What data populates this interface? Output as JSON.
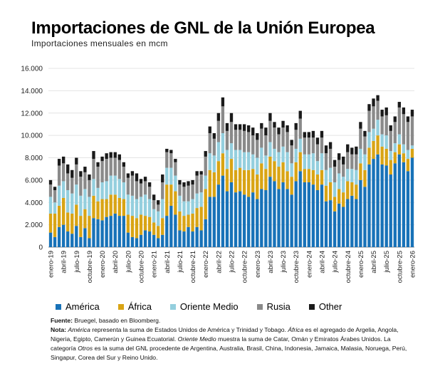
{
  "chart_data": {
    "type": "bar",
    "stacked": true,
    "title": "Importaciones de GNL de la Unión Europea",
    "subtitle": "Importaciones mensuales en mcm",
    "ylim": [
      0,
      16000
    ],
    "yticks": [
      "0",
      "2.000",
      "4.000",
      "6.000",
      "8.000",
      "10.000",
      "12.000",
      "14.000",
      "16.000"
    ],
    "ytick_values": [
      0,
      2000,
      4000,
      6000,
      8000,
      10000,
      12000,
      14000,
      16000
    ],
    "xtick_labels": [
      {
        "index": 0,
        "label": "enero-19"
      },
      {
        "index": 3,
        "label": "abril-19"
      },
      {
        "index": 6,
        "label": "julio-19"
      },
      {
        "index": 9,
        "label": "octubre-19"
      },
      {
        "index": 12,
        "label": "enero-20"
      },
      {
        "index": 15,
        "label": "abril-20"
      },
      {
        "index": 18,
        "label": "julio-20"
      },
      {
        "index": 21,
        "label": "octubre-20"
      },
      {
        "index": 24,
        "label": "enero-21"
      },
      {
        "index": 27,
        "label": "abril-21"
      },
      {
        "index": 30,
        "label": "julio-21"
      },
      {
        "index": 33,
        "label": "octubre-21"
      },
      {
        "index": 36,
        "label": "enero-22"
      },
      {
        "index": 39,
        "label": "abril-22"
      },
      {
        "index": 42,
        "label": "julio-22"
      },
      {
        "index": 45,
        "label": "octubre-22"
      },
      {
        "index": 48,
        "label": "enero-23"
      },
      {
        "index": 51,
        "label": "abril-23"
      },
      {
        "index": 54,
        "label": "julio-23"
      },
      {
        "index": 57,
        "label": "octubre-23"
      },
      {
        "index": 60,
        "label": "enero-24"
      },
      {
        "index": 63,
        "label": "abril-24"
      },
      {
        "index": 66,
        "label": "julio-24"
      },
      {
        "index": 69,
        "label": "octubre-24"
      },
      {
        "index": 72,
        "label": "enero-25"
      },
      {
        "index": 75,
        "label": "abril-25"
      },
      {
        "index": 78,
        "label": "julio-25"
      },
      {
        "index": 81,
        "label": "octubre-25"
      },
      {
        "index": 84,
        "label": "enero-26"
      }
    ],
    "series": [
      {
        "name": "América",
        "color": "#1872b8",
        "values": [
          1300,
          900,
          1800,
          2000,
          1400,
          1200,
          1900,
          900,
          1700,
          800,
          2600,
          2500,
          2400,
          2700,
          2800,
          3000,
          2800,
          2800,
          1300,
          900,
          800,
          1100,
          1500,
          1400,
          1100,
          800,
          1100,
          2800,
          3700,
          2900,
          1500,
          1400,
          1800,
          1400,
          1800,
          1500,
          2500,
          4500,
          4500,
          5600,
          6400,
          5000,
          5800,
          4900,
          5000,
          4700,
          4500,
          4900,
          4300,
          5200,
          5100,
          6300,
          5900,
          5200,
          5800,
          5200,
          4700,
          5900,
          6800,
          5800,
          5800,
          5600,
          5100,
          5600,
          4100,
          4200,
          3200,
          3900,
          3600,
          4300,
          4600,
          4300,
          6000,
          5400,
          7400,
          7900,
          8300,
          7400,
          7300,
          6500,
          7500,
          8300,
          7600,
          6800,
          8000
        ]
      },
      {
        "name": "África",
        "color": "#d9a414",
        "values": [
          1700,
          2100,
          1900,
          2400,
          1700,
          1800,
          1900,
          1900,
          1700,
          2000,
          2000,
          1600,
          1900,
          1600,
          1900,
          1700,
          1600,
          1500,
          1600,
          1900,
          1800,
          1800,
          1300,
          1300,
          1100,
          1100,
          1500,
          2800,
          1900,
          2100,
          1700,
          1400,
          1100,
          1600,
          1700,
          2100,
          2700,
          2400,
          2200,
          2100,
          2000,
          2000,
          2100,
          2000,
          2100,
          2200,
          2400,
          2100,
          2200,
          2300,
          1900,
          1800,
          1800,
          2000,
          1800,
          1600,
          1600,
          1700,
          1700,
          1200,
          1200,
          1300,
          1400,
          1300,
          1400,
          1600,
          1300,
          1300,
          1300,
          1600,
          1200,
          1300,
          1500,
          1500,
          1500,
          1600,
          1700,
          1600,
          1500,
          1300,
          1000,
          900,
          800,
          1100,
          800
        ]
      },
      {
        "name": "Oriente Medio",
        "color": "#94cfde",
        "values": [
          1500,
          1000,
          1800,
          1500,
          2000,
          1800,
          1800,
          1800,
          1800,
          1700,
          1500,
          1200,
          1500,
          1600,
          1700,
          1700,
          1700,
          1500,
          1800,
          1800,
          1700,
          1600,
          1900,
          1600,
          1200,
          1300,
          1700,
          1500,
          1500,
          1400,
          1400,
          1300,
          1200,
          1300,
          1300,
          1300,
          1200,
          1500,
          1500,
          1700,
          1800,
          1700,
          1400,
          1800,
          1600,
          1600,
          1600,
          1300,
          1500,
          1400,
          1200,
          1300,
          1100,
          1300,
          1400,
          1700,
          1200,
          1200,
          1200,
          1300,
          1300,
          1500,
          1200,
          1500,
          1400,
          1300,
          1300,
          1400,
          1400,
          1100,
          1200,
          1300,
          1300,
          1400,
          1400,
          1100,
          1400,
          1100,
          1200,
          800,
          800,
          900,
          800,
          800,
          300
        ]
      },
      {
        "name": "Rusia",
        "color": "#8a8a8a",
        "values": [
          1100,
          1100,
          1800,
          1600,
          1500,
          1400,
          1800,
          1700,
          1500,
          1500,
          1800,
          1900,
          1900,
          2000,
          1600,
          1600,
          1700,
          1400,
          1500,
          1800,
          1600,
          1200,
          1200,
          1100,
          800,
          600,
          1500,
          1400,
          1300,
          1200,
          1000,
          1300,
          1400,
          1300,
          1600,
          1600,
          1700,
          1800,
          1500,
          1900,
          2400,
          1700,
          1900,
          1800,
          1800,
          1900,
          1800,
          1700,
          1600,
          1700,
          1800,
          1900,
          1900,
          1600,
          1700,
          1800,
          1600,
          1700,
          1800,
          1500,
          1500,
          1400,
          1500,
          1400,
          1500,
          1700,
          1400,
          1200,
          1100,
          1500,
          1300,
          1400,
          1800,
          1600,
          1900,
          2000,
          1700,
          1600,
          1800,
          1800,
          1900,
          2400,
          2700,
          2500,
          2600
        ]
      },
      {
        "name": "Other",
        "color": "#1a1a1a",
        "values": [
          400,
          300,
          600,
          600,
          800,
          700,
          600,
          500,
          500,
          500,
          700,
          400,
          400,
          500,
          500,
          500,
          500,
          400,
          400,
          400,
          700,
          400,
          400,
          400,
          500,
          400,
          700,
          300,
          300,
          300,
          400,
          400,
          400,
          400,
          400,
          300,
          500,
          600,
          500,
          700,
          800,
          700,
          800,
          500,
          500,
          600,
          600,
          700,
          600,
          500,
          700,
          700,
          500,
          600,
          600,
          600,
          500,
          600,
          700,
          500,
          500,
          600,
          600,
          600,
          700,
          600,
          600,
          600,
          700,
          700,
          600,
          700,
          600,
          500,
          600,
          700,
          500,
          600,
          700,
          500,
          500,
          500,
          600,
          500,
          600
        ]
      }
    ]
  },
  "legend_items": [
    {
      "label": "América",
      "color": "#1872b8"
    },
    {
      "label": "África",
      "color": "#d9a414"
    },
    {
      "label": "Oriente Medio",
      "color": "#94cfde"
    },
    {
      "label": "Rusia",
      "color": "#8a8a8a"
    },
    {
      "label": "Other",
      "color": "#1a1a1a"
    }
  ],
  "notes": {
    "source_label": "Fuente:",
    "source_text": " Bruegel, basado en Bloomberg.",
    "note_label": "Nota:",
    "note_part1": " ",
    "note_america": "América",
    "note_part2": " representa la suma de Estados Unidos de América y Trinidad y Tobago. ",
    "note_africa": "África",
    "note_part3": " es el agregado de Argelia, Angola, Nigeria, Egipto, Camerún y Guinea Ecuatorial. ",
    "note_oriente": "Oriente Medio",
    "note_part4": " muestra la suma de Catar, Omán y Emiratos Árabes Unidos. La categoría ",
    "note_otros": "Otros",
    "note_part5": " es la suma del GNL procedente de Argentina, Australia, Brasil, China, Indonesia, Jamaica, Malasia, Noruega, Perú, Singapur, Corea del Sur y Reino Unido."
  }
}
